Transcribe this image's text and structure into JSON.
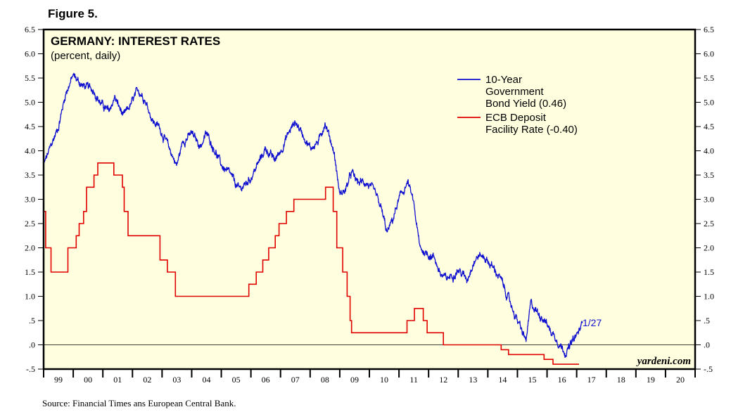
{
  "figure_label": "Figure 5.",
  "source": "Source: Financial Times ans European Central Bank.",
  "colors": {
    "background": "#ffffe0",
    "bond": "#1010d0",
    "ecb": "#e00000",
    "axis": "#000000"
  },
  "chart_data": {
    "type": "line",
    "title": "GERMANY: INTEREST RATES",
    "subtitle": "(percent, daily)",
    "watermark": "yardeni.com",
    "end_annotation": "1/27",
    "x_domain": [
      1999,
      2021
    ],
    "ylim": [
      -0.5,
      6.5
    ],
    "y_ticks": [
      {
        "v": 6.5,
        "label": "6.5"
      },
      {
        "v": 6.0,
        "label": "6.0"
      },
      {
        "v": 5.5,
        "label": "5.5"
      },
      {
        "v": 5.0,
        "label": "5.0"
      },
      {
        "v": 4.5,
        "label": "4.5"
      },
      {
        "v": 4.0,
        "label": "4.0"
      },
      {
        "v": 3.5,
        "label": "3.5"
      },
      {
        "v": 3.0,
        "label": "3.0"
      },
      {
        "v": 2.5,
        "label": "2.5"
      },
      {
        "v": 2.0,
        "label": "2.0"
      },
      {
        "v": 1.5,
        "label": "1.5"
      },
      {
        "v": 1.0,
        "label": "1.0"
      },
      {
        "v": 0.5,
        "label": ".5"
      },
      {
        "v": 0.0,
        "label": ".0"
      },
      {
        "v": -0.5,
        "label": "-.5"
      }
    ],
    "x_ticks": [
      "99",
      "00",
      "01",
      "02",
      "03",
      "04",
      "05",
      "06",
      "07",
      "08",
      "09",
      "10",
      "11",
      "12",
      "13",
      "14",
      "15",
      "16",
      "17",
      "18",
      "19",
      "20"
    ],
    "zero_line": 0,
    "legend": [
      {
        "name": "10-Year Government Bond Yield (0.46)",
        "lines": [
          "10-Year",
          "Government",
          "Bond Yield (0.46)"
        ],
        "color": "#1010d0"
      },
      {
        "name": "ECB Deposit Facility Rate (-0.40)",
        "lines": [
          "ECB Deposit",
          "Facility Rate (-0.40)"
        ],
        "color": "#e00000"
      }
    ],
    "series": [
      {
        "name": "10-Year Government Bond Yield",
        "color": "#1010d0",
        "style": "noisy",
        "points": [
          [
            1999.0,
            3.7
          ],
          [
            1999.25,
            4.1
          ],
          [
            1999.5,
            4.5
          ],
          [
            1999.75,
            5.2
          ],
          [
            2000.0,
            5.55
          ],
          [
            2000.3,
            5.35
          ],
          [
            2000.7,
            5.25
          ],
          [
            2000.9,
            5.0
          ],
          [
            2001.2,
            4.8
          ],
          [
            2001.4,
            5.1
          ],
          [
            2001.7,
            4.7
          ],
          [
            2001.9,
            4.9
          ],
          [
            2002.2,
            5.25
          ],
          [
            2002.4,
            5.1
          ],
          [
            2002.7,
            4.6
          ],
          [
            2002.9,
            4.5
          ],
          [
            2003.2,
            4.1
          ],
          [
            2003.5,
            3.7
          ],
          [
            2003.7,
            4.2
          ],
          [
            2004.0,
            4.35
          ],
          [
            2004.3,
            4.1
          ],
          [
            2004.5,
            4.35
          ],
          [
            2004.8,
            4.0
          ],
          [
            2005.0,
            3.7
          ],
          [
            2005.3,
            3.5
          ],
          [
            2005.6,
            3.2
          ],
          [
            2005.8,
            3.3
          ],
          [
            2006.0,
            3.45
          ],
          [
            2006.3,
            3.8
          ],
          [
            2006.5,
            4.05
          ],
          [
            2006.8,
            3.8
          ],
          [
            2007.0,
            4.0
          ],
          [
            2007.3,
            4.4
          ],
          [
            2007.5,
            4.6
          ],
          [
            2007.8,
            4.3
          ],
          [
            2008.0,
            4.05
          ],
          [
            2008.3,
            4.2
          ],
          [
            2008.5,
            4.6
          ],
          [
            2008.8,
            4.0
          ],
          [
            2009.0,
            3.1
          ],
          [
            2009.2,
            3.2
          ],
          [
            2009.4,
            3.55
          ],
          [
            2009.6,
            3.35
          ],
          [
            2009.9,
            3.35
          ],
          [
            2010.2,
            3.1
          ],
          [
            2010.4,
            2.8
          ],
          [
            2010.6,
            2.3
          ],
          [
            2010.8,
            2.6
          ],
          [
            2011.0,
            3.0
          ],
          [
            2011.3,
            3.35
          ],
          [
            2011.5,
            2.9
          ],
          [
            2011.7,
            2.0
          ],
          [
            2011.9,
            1.9
          ],
          [
            2012.2,
            1.8
          ],
          [
            2012.4,
            1.45
          ],
          [
            2012.6,
            1.35
          ],
          [
            2012.8,
            1.45
          ],
          [
            2013.0,
            1.55
          ],
          [
            2013.3,
            1.35
          ],
          [
            2013.5,
            1.7
          ],
          [
            2013.7,
            1.85
          ],
          [
            2013.9,
            1.8
          ],
          [
            2014.1,
            1.65
          ],
          [
            2014.4,
            1.4
          ],
          [
            2014.6,
            1.1
          ],
          [
            2014.8,
            0.8
          ],
          [
            2015.0,
            0.5
          ],
          [
            2015.2,
            0.2
          ],
          [
            2015.3,
            0.1
          ],
          [
            2015.45,
            0.85
          ],
          [
            2015.7,
            0.65
          ],
          [
            2015.9,
            0.55
          ],
          [
            2016.1,
            0.3
          ],
          [
            2016.3,
            0.15
          ],
          [
            2016.5,
            -0.05
          ],
          [
            2016.65,
            -0.15
          ],
          [
            2016.85,
            0.05
          ],
          [
            2017.0,
            0.2
          ],
          [
            2017.1,
            0.3
          ],
          [
            2017.2,
            0.46
          ]
        ]
      },
      {
        "name": "ECB Deposit Facility Rate",
        "color": "#e00000",
        "style": "step",
        "points": [
          [
            1999.0,
            2.75
          ],
          [
            1999.07,
            2.0
          ],
          [
            1999.25,
            1.5
          ],
          [
            1999.82,
            2.0
          ],
          [
            2000.1,
            2.25
          ],
          [
            2000.2,
            2.5
          ],
          [
            2000.35,
            2.75
          ],
          [
            2000.45,
            3.25
          ],
          [
            2000.7,
            3.5
          ],
          [
            2000.83,
            3.75
          ],
          [
            2001.37,
            3.5
          ],
          [
            2001.66,
            3.25
          ],
          [
            2001.72,
            2.75
          ],
          [
            2001.85,
            2.25
          ],
          [
            2002.93,
            1.75
          ],
          [
            2003.18,
            1.5
          ],
          [
            2003.45,
            1.0
          ],
          [
            2005.93,
            1.25
          ],
          [
            2006.18,
            1.5
          ],
          [
            2006.4,
            1.75
          ],
          [
            2006.6,
            2.0
          ],
          [
            2006.82,
            2.25
          ],
          [
            2006.95,
            2.5
          ],
          [
            2007.2,
            2.75
          ],
          [
            2007.45,
            3.0
          ],
          [
            2008.52,
            3.25
          ],
          [
            2008.78,
            2.75
          ],
          [
            2008.9,
            2.0
          ],
          [
            2009.1,
            1.5
          ],
          [
            2009.25,
            1.0
          ],
          [
            2009.35,
            0.5
          ],
          [
            2009.4,
            0.25
          ],
          [
            2011.27,
            0.5
          ],
          [
            2011.52,
            0.75
          ],
          [
            2011.82,
            0.5
          ],
          [
            2011.95,
            0.25
          ],
          [
            2012.5,
            0.0
          ],
          [
            2014.45,
            -0.1
          ],
          [
            2014.7,
            -0.2
          ],
          [
            2015.9,
            -0.3
          ],
          [
            2016.2,
            -0.4
          ],
          [
            2017.08,
            -0.4
          ]
        ]
      }
    ]
  }
}
